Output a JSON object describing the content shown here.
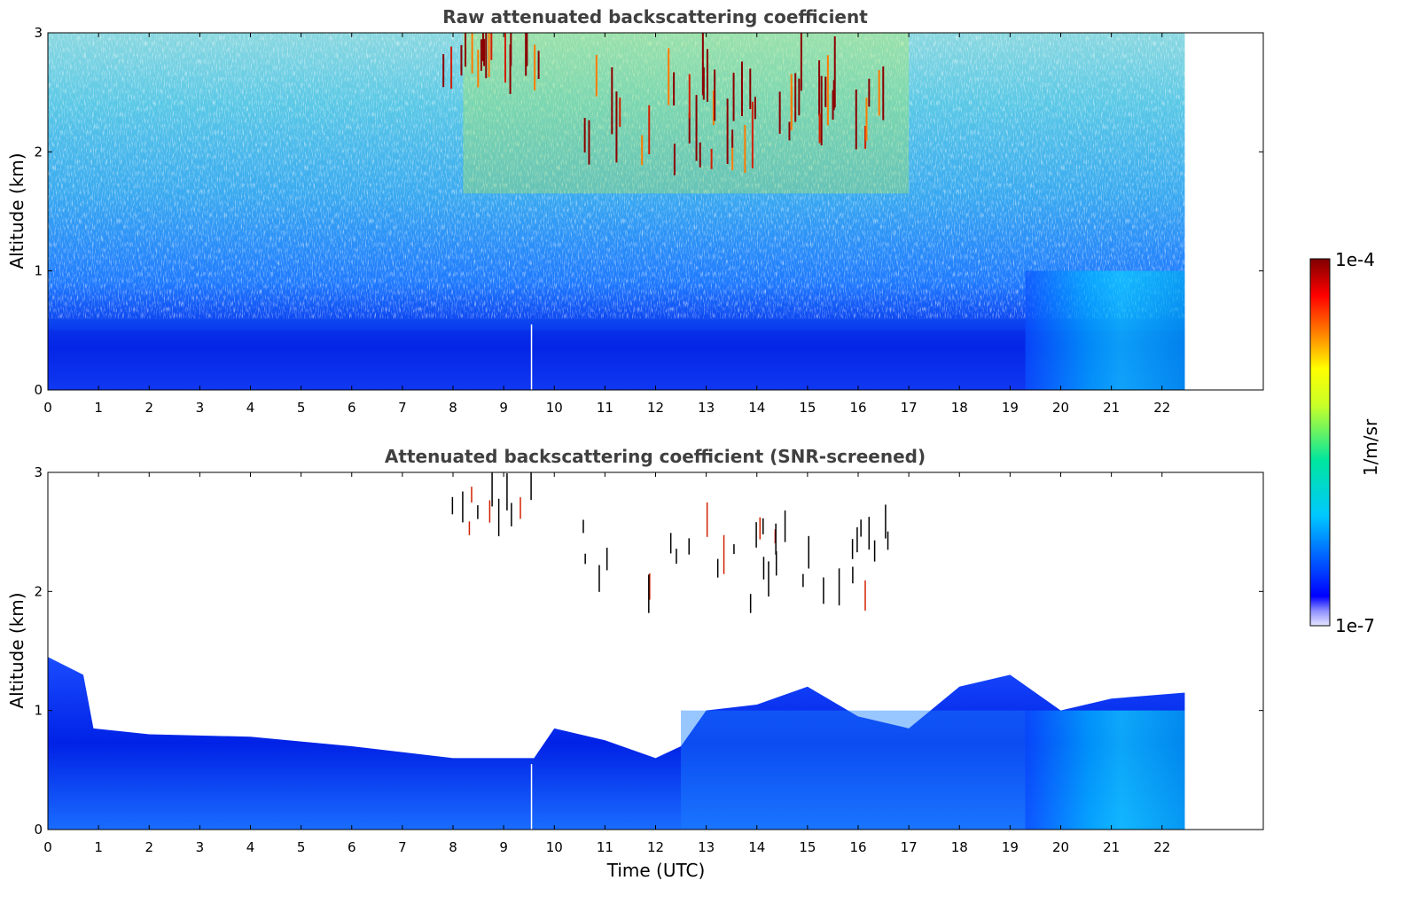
{
  "chart_data": [
    {
      "type": "heatmap",
      "title": "Raw attenuated backscattering coefficient",
      "xlabel": "",
      "ylabel": "Altitude (km)",
      "xlim": [
        0,
        24
      ],
      "ylim": [
        0,
        3
      ],
      "xticks": [
        "0",
        "1",
        "2",
        "3",
        "4",
        "5",
        "6",
        "7",
        "8",
        "9",
        "10",
        "11",
        "12",
        "13",
        "14",
        "15",
        "16",
        "17",
        "18",
        "19",
        "20",
        "21",
        "22"
      ],
      "yticks": [
        "0",
        "1",
        "2",
        "3"
      ],
      "data_end_time": 22.45,
      "features": [
        {
          "kind": "boundary-layer",
          "time_range": [
            0,
            22.45
          ],
          "altitude_km": [
            0,
            0.5
          ],
          "level": "medium"
        },
        {
          "kind": "aerosol-layer",
          "time_range": [
            19.3,
            22.45
          ],
          "altitude_km": [
            0,
            1.0
          ],
          "level": "medium-high"
        },
        {
          "kind": "cloud",
          "time_range": [
            7.8,
            9.7
          ],
          "altitude_km": [
            2.45,
            3.0
          ],
          "level": "high"
        },
        {
          "kind": "cloud",
          "time_range": [
            10.5,
            16.6
          ],
          "altitude_km": [
            1.8,
            3.0
          ],
          "level": "high"
        }
      ]
    },
    {
      "type": "heatmap",
      "title": "Attenuated backscattering coefficient (SNR-screened)",
      "xlabel": "Time (UTC)",
      "ylabel": "Altitude (km)",
      "xlim": [
        0,
        24
      ],
      "ylim": [
        0,
        3
      ],
      "xticks": [
        "0",
        "1",
        "2",
        "3",
        "4",
        "5",
        "6",
        "7",
        "8",
        "9",
        "10",
        "11",
        "12",
        "13",
        "14",
        "15",
        "16",
        "17",
        "18",
        "19",
        "20",
        "21",
        "22"
      ],
      "yticks": [
        "0",
        "1",
        "2",
        "3"
      ],
      "data_end_time": 22.45,
      "screened_layer_top_km": [
        [
          0,
          1.45
        ],
        [
          0.7,
          1.3
        ],
        [
          0.9,
          0.85
        ],
        [
          2,
          0.8
        ],
        [
          4,
          0.78
        ],
        [
          6,
          0.7
        ],
        [
          8,
          0.6
        ],
        [
          9.6,
          0.6
        ],
        [
          10,
          0.85
        ],
        [
          11,
          0.75
        ],
        [
          12,
          0.6
        ],
        [
          12.5,
          0.7
        ],
        [
          13,
          1.0
        ],
        [
          14,
          1.05
        ],
        [
          15,
          1.2
        ],
        [
          16,
          0.95
        ],
        [
          17,
          0.85
        ],
        [
          18,
          1.2
        ],
        [
          19,
          1.3
        ],
        [
          20,
          1.0
        ],
        [
          21,
          1.1
        ],
        [
          22.45,
          1.15
        ]
      ]
    }
  ],
  "colorbar": {
    "label": "1/m/sr",
    "max_label": "1e-4",
    "min_label": "1e-7",
    "colors": [
      "#e6e6ff",
      "#0000ff",
      "#00c8ff",
      "#00e6a0",
      "#c8ff28",
      "#ffff00",
      "#ff6400",
      "#ff0000",
      "#800000"
    ]
  }
}
